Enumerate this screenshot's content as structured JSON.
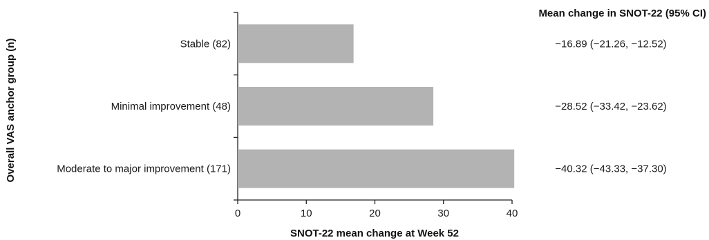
{
  "chart_data": {
    "type": "bar",
    "orientation": "horizontal",
    "categories": [
      "Stable (82)",
      "Minimal improvement (48)",
      "Moderate to major improvement (171)"
    ],
    "values": [
      16.89,
      28.52,
      40.32
    ],
    "ci_labels": [
      "−16.89 (−21.26, −12.52)",
      "−28.52 (−33.42, −23.62)",
      "−40.32 (−43.33, −37.30)"
    ],
    "xlabel": "SNOT-22 mean change at Week 52",
    "ylabel": "Overall VAS anchor group (n)",
    "right_header": "Mean change in SNOT-22 (95% CI)",
    "xlim": [
      0,
      40
    ],
    "xticks": [
      "0",
      "10",
      "20",
      "30",
      "40"
    ],
    "grid": false,
    "bar_color": "#b3b3b3"
  }
}
